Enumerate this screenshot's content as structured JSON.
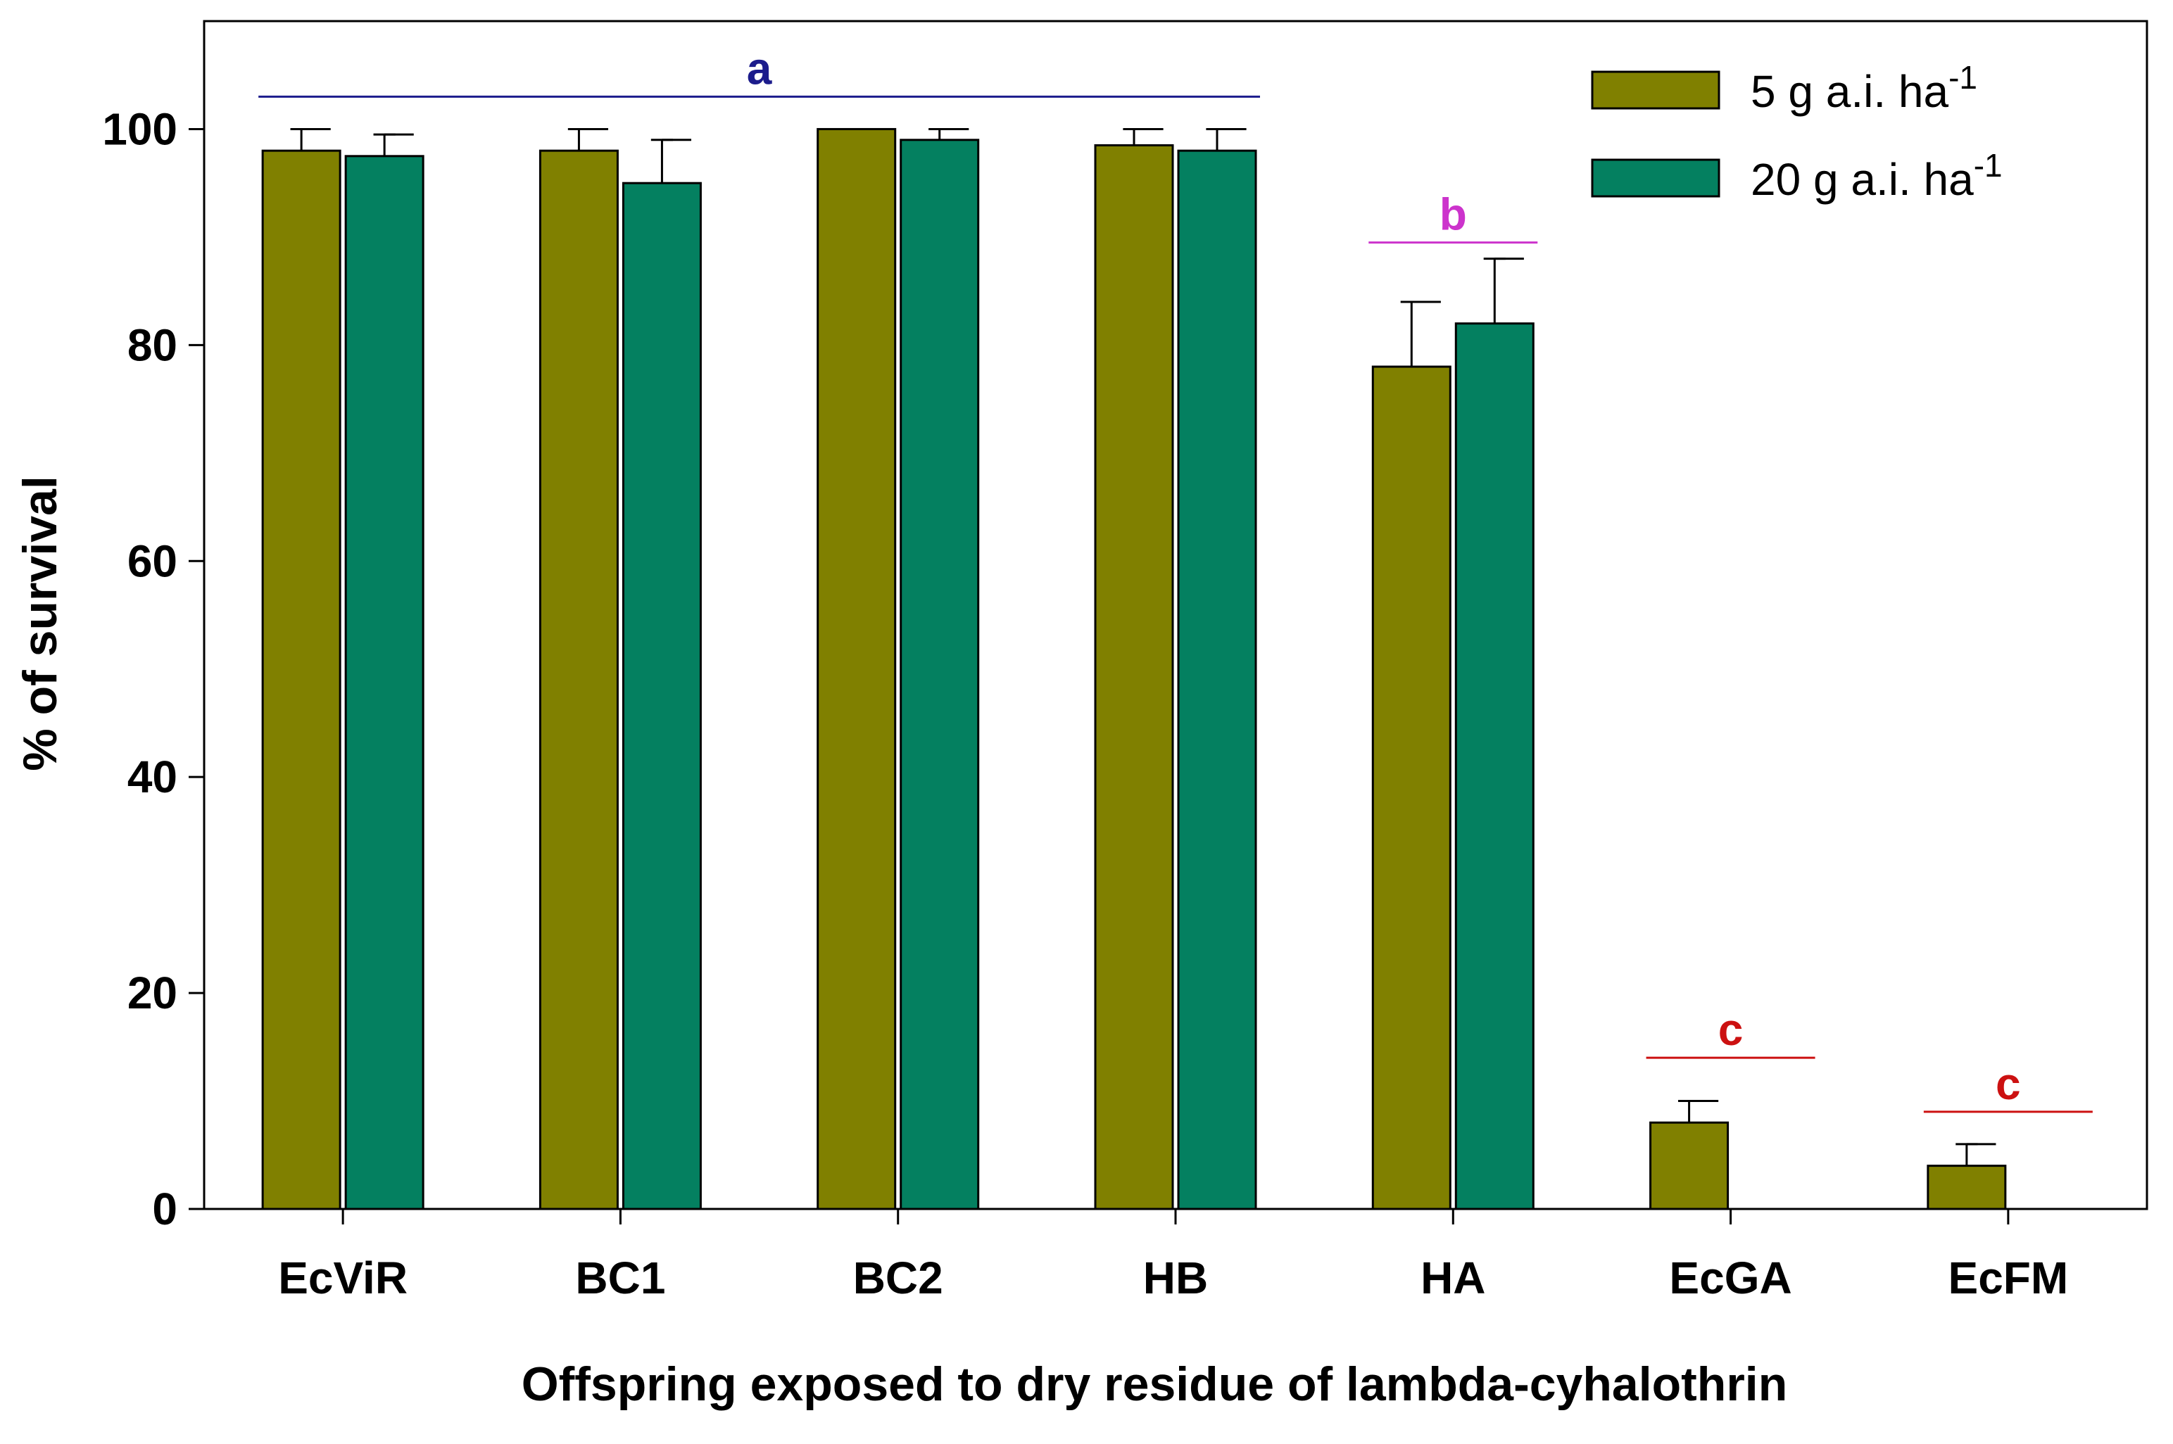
{
  "chart_data": {
    "type": "bar",
    "title": "",
    "xlabel": "Offspring exposed to dry residue of lambda-cyhalothrin",
    "ylabel": "% of survival",
    "ylim": [
      0,
      110
    ],
    "yticks": [
      "0",
      "20",
      "40",
      "60",
      "80",
      "100"
    ],
    "grid": false,
    "legend_position": "top-right",
    "categories": [
      "EcViR",
      "BC1",
      "BC2",
      "HB",
      "HA",
      "EcGA",
      "EcFM"
    ],
    "series": [
      {
        "name": "5 g a.i. ha",
        "superscript": "-1",
        "color": "#808000",
        "values": [
          98,
          98,
          100,
          98.5,
          78,
          8,
          4
        ],
        "errors": [
          2,
          2,
          0,
          1.5,
          6,
          2,
          2
        ]
      },
      {
        "name": "20 g a.i. ha",
        "superscript": "-1",
        "color": "#048060",
        "values": [
          97.5,
          95,
          99,
          98,
          82,
          0,
          0
        ],
        "errors": [
          2,
          4,
          1,
          2,
          6,
          0,
          0
        ]
      }
    ],
    "annotations": [
      {
        "letter": "a",
        "from": "EcViR",
        "to": "HB",
        "y": 103,
        "color": "#1c1c8c"
      },
      {
        "letter": "b",
        "from": "HA",
        "to": "HA",
        "y": 89.5,
        "color": "#cc33cc"
      },
      {
        "letter": "c",
        "from": "EcGA",
        "to": "EcGA",
        "y": 14,
        "color": "#cc1111"
      },
      {
        "letter": "c",
        "from": "EcFM",
        "to": "EcFM",
        "y": 9,
        "color": "#cc1111"
      }
    ]
  }
}
